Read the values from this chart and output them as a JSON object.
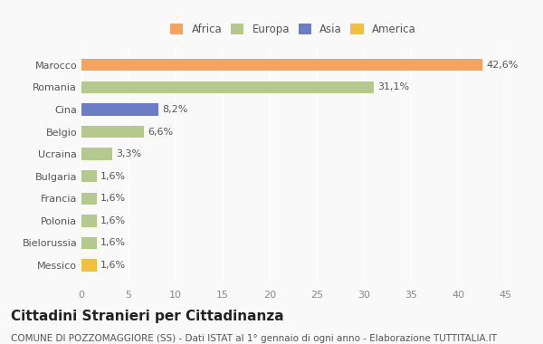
{
  "categories": [
    "Marocco",
    "Romania",
    "Cina",
    "Belgio",
    "Ucraina",
    "Bulgaria",
    "Francia",
    "Polonia",
    "Bielorussia",
    "Messico"
  ],
  "values": [
    42.6,
    31.1,
    8.2,
    6.6,
    3.3,
    1.6,
    1.6,
    1.6,
    1.6,
    1.6
  ],
  "labels": [
    "42,6%",
    "31,1%",
    "8,2%",
    "6,6%",
    "3,3%",
    "1,6%",
    "1,6%",
    "1,6%",
    "1,6%",
    "1,6%"
  ],
  "colors": [
    "#F4A460",
    "#B5C98E",
    "#6B7DC4",
    "#B5C98E",
    "#B5C98E",
    "#B5C98E",
    "#B5C98E",
    "#B5C98E",
    "#B5C98E",
    "#F0C040"
  ],
  "legend_labels": [
    "Africa",
    "Europa",
    "Asia",
    "America"
  ],
  "legend_colors": [
    "#F4A460",
    "#B5C98E",
    "#6B7DC4",
    "#F0C040"
  ],
  "xlim": [
    0,
    45
  ],
  "xticks": [
    0,
    5,
    10,
    15,
    20,
    25,
    30,
    35,
    40,
    45
  ],
  "title": "Cittadini Stranieri per Cittadinanza",
  "subtitle": "COMUNE DI POZZOMAGGIORE (SS) - Dati ISTAT al 1° gennaio di ogni anno - Elaborazione TUTTITALIA.IT",
  "bg_color": "#f9f9f9",
  "bar_height": 0.55,
  "title_fontsize": 11,
  "subtitle_fontsize": 7.5,
  "label_fontsize": 8,
  "tick_fontsize": 8
}
